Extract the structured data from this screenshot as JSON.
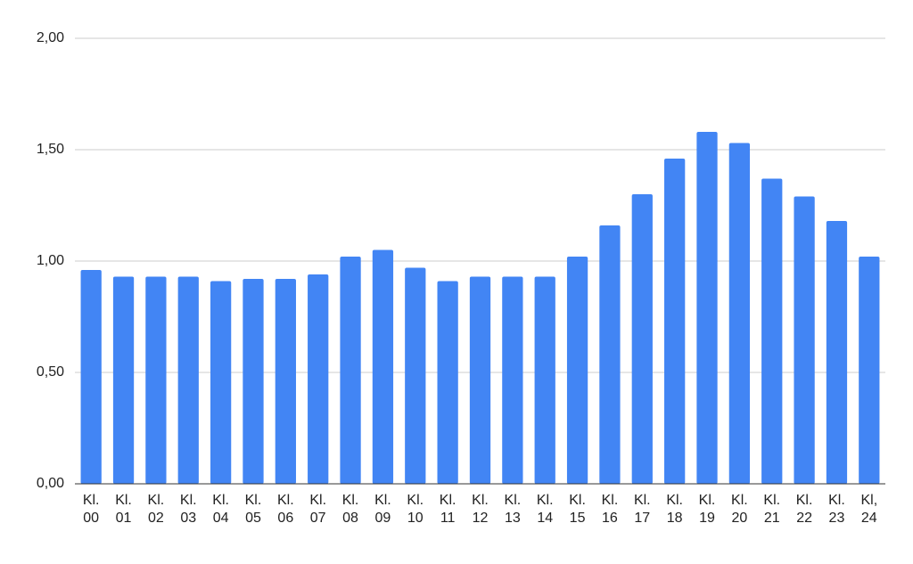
{
  "chart_data": {
    "type": "bar",
    "categories": [
      "Kl. 00",
      "Kl. 01",
      "Kl. 02",
      "Kl. 03",
      "Kl. 04",
      "Kl. 05",
      "Kl. 06",
      "Kl. 07",
      "Kl. 08",
      "Kl. 09",
      "Kl. 10",
      "Kl. 11",
      "Kl. 12",
      "Kl. 13",
      "Kl. 14",
      "Kl. 15",
      "Kl. 16",
      "Kl. 17",
      "Kl. 18",
      "Kl. 19",
      "Kl. 20",
      "Kl. 21",
      "Kl. 22",
      "Kl. 23",
      "Kl, 24"
    ],
    "values": [
      0.96,
      0.93,
      0.93,
      0.93,
      0.91,
      0.92,
      0.92,
      0.94,
      1.02,
      1.05,
      0.97,
      0.91,
      0.93,
      0.93,
      0.93,
      1.02,
      1.16,
      1.3,
      1.46,
      1.58,
      1.53,
      1.37,
      1.29,
      1.18,
      1.02
    ],
    "color": "#4285f4",
    "ylim": [
      0,
      2
    ],
    "yticks": [
      {
        "value": 0,
        "label": "0,00"
      },
      {
        "value": 0.5,
        "label": "0,50"
      },
      {
        "value": 1,
        "label": "1,00"
      },
      {
        "value": 1.5,
        "label": "1,50"
      },
      {
        "value": 2,
        "label": "2,00"
      }
    ],
    "grid": true
  }
}
